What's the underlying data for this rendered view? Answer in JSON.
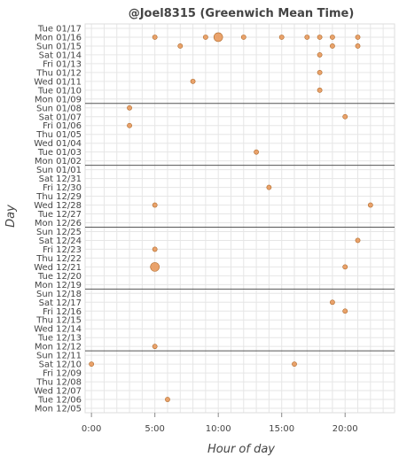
{
  "chart_data": {
    "type": "scatter",
    "title": "@Joel8315 (Greenwich Mean Time)",
    "xlabel": "Hour of day",
    "ylabel": "Day",
    "xlim": [
      -0.5,
      23.9
    ],
    "x_ticks": [
      {
        "value": 0,
        "label": "0:00"
      },
      {
        "value": 5,
        "label": "5:00"
      },
      {
        "value": 10,
        "label": "10:00"
      },
      {
        "value": 15,
        "label": "15:00"
      },
      {
        "value": 20,
        "label": "20:00"
      }
    ],
    "categories": [
      "Tue 01/17",
      "Mon 01/16",
      "Sun 01/15",
      "Sat 01/14",
      "Fri 01/13",
      "Thu 01/12",
      "Wed 01/11",
      "Tue 01/10",
      "Mon 01/09",
      "Sun 01/08",
      "Sat 01/07",
      "Fri 01/06",
      "Thu 01/05",
      "Wed 01/04",
      "Tue 01/03",
      "Mon 01/02",
      "Sun 01/01",
      "Sat 12/31",
      "Fri 12/30",
      "Thu 12/29",
      "Wed 12/28",
      "Tue 12/27",
      "Mon 12/26",
      "Sun 12/25",
      "Sat 12/24",
      "Fri 12/23",
      "Thu 12/22",
      "Wed 12/21",
      "Tue 12/20",
      "Mon 12/19",
      "Sun 12/18",
      "Sat 12/17",
      "Fri 12/16",
      "Thu 12/15",
      "Wed 12/14",
      "Tue 12/13",
      "Mon 12/12",
      "Sun 12/11",
      "Sat 12/10",
      "Fri 12/09",
      "Thu 12/08",
      "Wed 12/07",
      "Tue 12/06",
      "Mon 12/05"
    ],
    "week_separators": [
      "Sun 01/08",
      "Sun 01/01",
      "Sun 12/25",
      "Sun 12/18",
      "Sun 12/11"
    ],
    "grid": true,
    "points": [
      {
        "day": "Mon 01/16",
        "hour": 5,
        "count": 1
      },
      {
        "day": "Mon 01/16",
        "hour": 9,
        "count": 1
      },
      {
        "day": "Mon 01/16",
        "hour": 10,
        "count": 3
      },
      {
        "day": "Mon 01/16",
        "hour": 12,
        "count": 1
      },
      {
        "day": "Mon 01/16",
        "hour": 15,
        "count": 1
      },
      {
        "day": "Mon 01/16",
        "hour": 17,
        "count": 1
      },
      {
        "day": "Mon 01/16",
        "hour": 18,
        "count": 1
      },
      {
        "day": "Mon 01/16",
        "hour": 19,
        "count": 1
      },
      {
        "day": "Mon 01/16",
        "hour": 21,
        "count": 1
      },
      {
        "day": "Sun 01/15",
        "hour": 7,
        "count": 1
      },
      {
        "day": "Sun 01/15",
        "hour": 19,
        "count": 1
      },
      {
        "day": "Sun 01/15",
        "hour": 21,
        "count": 1
      },
      {
        "day": "Sat 01/14",
        "hour": 18,
        "count": 1
      },
      {
        "day": "Thu 01/12",
        "hour": 18,
        "count": 1
      },
      {
        "day": "Wed 01/11",
        "hour": 8,
        "count": 1
      },
      {
        "day": "Tue 01/10",
        "hour": 18,
        "count": 1
      },
      {
        "day": "Sun 01/08",
        "hour": 3,
        "count": 1
      },
      {
        "day": "Sat 01/07",
        "hour": 20,
        "count": 1
      },
      {
        "day": "Fri 01/06",
        "hour": 3,
        "count": 1
      },
      {
        "day": "Tue 01/03",
        "hour": 13,
        "count": 1
      },
      {
        "day": "Fri 12/30",
        "hour": 14,
        "count": 1
      },
      {
        "day": "Wed 12/28",
        "hour": 5,
        "count": 1
      },
      {
        "day": "Wed 12/28",
        "hour": 22,
        "count": 1
      },
      {
        "day": "Sat 12/24",
        "hour": 21,
        "count": 1
      },
      {
        "day": "Fri 12/23",
        "hour": 5,
        "count": 1
      },
      {
        "day": "Wed 12/21",
        "hour": 5,
        "count": 3
      },
      {
        "day": "Wed 12/21",
        "hour": 20,
        "count": 1
      },
      {
        "day": "Sat 12/17",
        "hour": 19,
        "count": 1
      },
      {
        "day": "Fri 12/16",
        "hour": 20,
        "count": 1
      },
      {
        "day": "Mon 12/12",
        "hour": 5,
        "count": 1
      },
      {
        "day": "Sat 12/10",
        "hour": 0,
        "count": 1
      },
      {
        "day": "Sat 12/10",
        "hour": 16,
        "count": 1
      },
      {
        "day": "Tue 12/06",
        "hour": 6,
        "count": 1
      }
    ]
  }
}
